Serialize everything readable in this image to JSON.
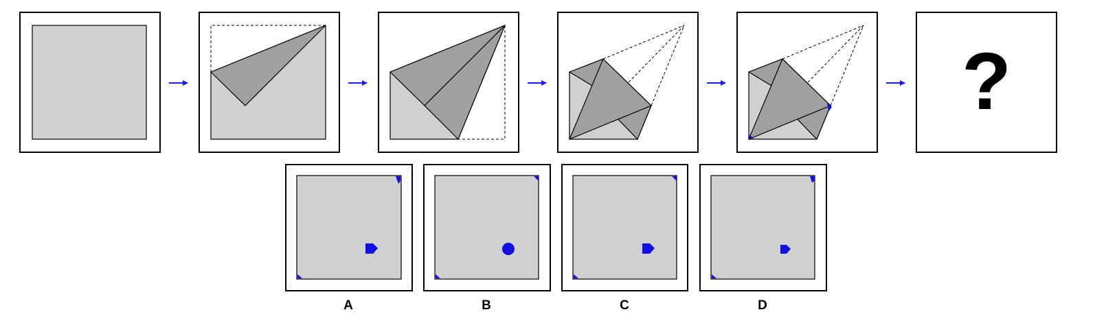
{
  "question_mark": "?",
  "options": [
    {
      "label": "A"
    },
    {
      "label": "B"
    },
    {
      "label": "C"
    },
    {
      "label": "D"
    }
  ],
  "colors": {
    "paper": "#d0d0d0",
    "paper_folded": "#a0a0a0",
    "frame": "#000000",
    "arrow": "#1a1aff",
    "punch": "#1010e0"
  },
  "icons": [
    "right-arrow-icon",
    "punch-hole-icon",
    "question-mark-icon"
  ]
}
